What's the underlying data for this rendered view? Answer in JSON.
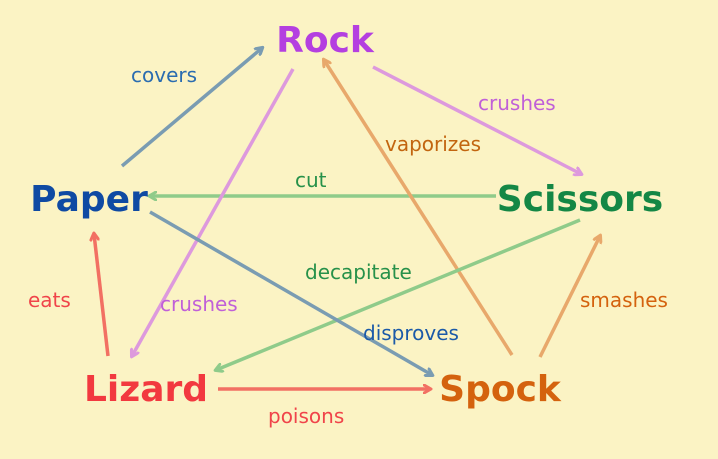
{
  "nodes": {
    "rock": {
      "label": "Rock",
      "color": "#b43fe0"
    },
    "paper": {
      "label": "Paper",
      "color": "#0f4aa3"
    },
    "scissors": {
      "label": "Scissors",
      "color": "#148745"
    },
    "lizard": {
      "label": "Lizard",
      "color": "#f2393f"
    },
    "spock": {
      "label": "Spock",
      "color": "#d4620e"
    }
  },
  "edges": [
    {
      "id": "paper-covers-rock",
      "from": "Paper",
      "to": "Rock",
      "label": "covers",
      "color": "#7a9cb2",
      "label_color": "#2a6cb0"
    },
    {
      "id": "rock-crushes-scissors",
      "from": "Rock",
      "to": "Scissors",
      "label": "crushes",
      "color": "#dd99dd",
      "label_color": "#c060d8"
    },
    {
      "id": "scissors-cut-paper",
      "from": "Scissors",
      "to": "Paper",
      "label": "cut",
      "color": "#8fcb8a",
      "label_color": "#27914a"
    },
    {
      "id": "spock-vaporizes-rock",
      "from": "Spock",
      "to": "Rock",
      "label": "vaporizes",
      "color": "#e8a86b",
      "label_color": "#c2650f"
    },
    {
      "id": "rock-crushes-lizard",
      "from": "Rock",
      "to": "Lizard",
      "label": "crushes",
      "color": "#dd99dd",
      "label_color": "#c060d8"
    },
    {
      "id": "scissors-decapitate-lizard",
      "from": "Scissors",
      "to": "Lizard",
      "label": "decapitate",
      "color": "#8fcb8a",
      "label_color": "#27914a"
    },
    {
      "id": "paper-disproves-spock",
      "from": "Paper",
      "to": "Spock",
      "label": "disproves",
      "color": "#7a9cb2",
      "label_color": "#1b5aa8"
    },
    {
      "id": "spock-smashes-scissors",
      "from": "Spock",
      "to": "Scissors",
      "label": "smashes",
      "color": "#e8a86b",
      "label_color": "#d4620e"
    },
    {
      "id": "lizard-eats-paper",
      "from": "Lizard",
      "to": "Paper",
      "label": "eats",
      "color": "#f27063",
      "label_color": "#f0444a"
    },
    {
      "id": "lizard-poisons-spock",
      "from": "Lizard",
      "to": "Spock",
      "label": "poisons",
      "color": "#f27063",
      "label_color": "#f0444a"
    }
  ]
}
